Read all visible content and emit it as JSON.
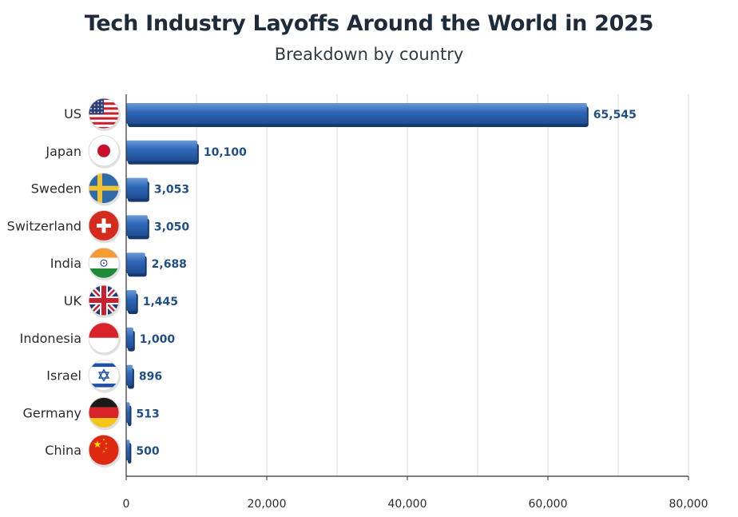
{
  "title": "Tech Industry Layoffs Around the World in 2025",
  "subtitle": "Breakdown by country",
  "chart_data": {
    "type": "bar",
    "orientation": "horizontal",
    "title": "Tech Industry Layoffs Around the World in 2025",
    "subtitle": "Breakdown by country",
    "categories": [
      "US",
      "Japan",
      "Sweden",
      "Switzerland",
      "India",
      "UK",
      "Indonesia",
      "Israel",
      "Germany",
      "China"
    ],
    "values": [
      65545,
      10100,
      3053,
      3050,
      2688,
      1445,
      1000,
      896,
      513,
      500
    ],
    "value_labels": [
      "65,545",
      "10,100",
      "3,053",
      "3,050",
      "2,688",
      "1,445",
      "1,000",
      "896",
      "513",
      "500"
    ],
    "xlim": [
      0,
      80000
    ],
    "x_ticks": [
      0,
      20000,
      40000,
      60000,
      80000
    ],
    "x_tick_labels": [
      "0",
      "20,000",
      "40,000",
      "60,000",
      "80,000"
    ],
    "xlabel": "",
    "ylabel": "",
    "grid": true,
    "bar_color": "#2c64b4",
    "value_label_color": "#1f4f86"
  }
}
